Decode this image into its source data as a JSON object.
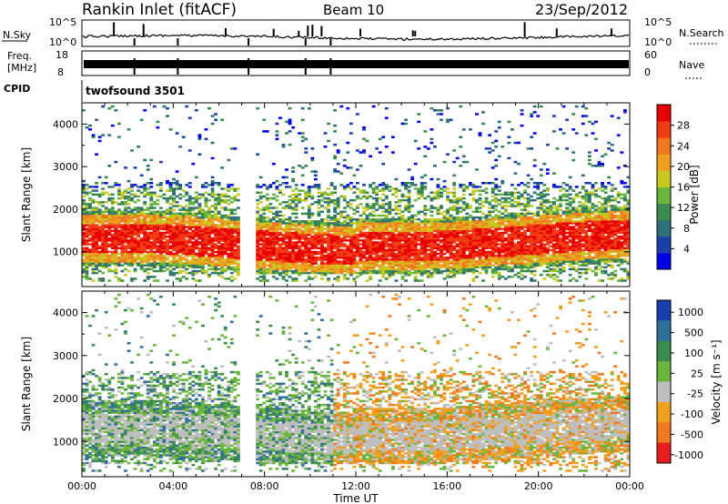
{
  "header": {
    "station": "Rankin Inlet (fitACF)",
    "beam": "Beam 10",
    "date": "23/Sep/2012"
  },
  "strips": {
    "nsky_label": "N.Sky",
    "nsearch_label": "N.Search",
    "nsky_ticks": [
      "10^5",
      "10^0"
    ],
    "nsky_right_ticks": [
      "10^5",
      "10^0"
    ],
    "freq_label_1": "Freq.",
    "freq_label_2": "[MHz]",
    "freq_ticks": [
      "18",
      "8"
    ],
    "nave_label": "Nave",
    "nave_ticks": [
      "60",
      "0"
    ],
    "cpid_label": "CPID",
    "cpid_value": "twofsound 3501"
  },
  "axes": {
    "xlabel": "Time UT",
    "x_ticks": [
      "00:00",
      "04:00",
      "08:00",
      "12:00",
      "16:00",
      "20:00",
      "00:00"
    ],
    "ylabel": "Slant Range [km]",
    "y_ticks": [
      "4000",
      "3000",
      "2000",
      "1000"
    ]
  },
  "colorbars": {
    "power_label": "Power [dB]",
    "power_ticks": [
      "28",
      "24",
      "20",
      "16",
      "12",
      "8",
      "4"
    ],
    "velocity_label": "Velocity [m s⁻¹]",
    "velocity_ticks": [
      "1000",
      "500",
      "100",
      "25",
      "-25",
      "-100",
      "-500",
      "-1000"
    ]
  },
  "chart_data": [
    {
      "type": "heatmap",
      "title": "Power",
      "xlabel": "Time UT",
      "ylabel": "Slant Range [km]",
      "xlim": [
        "00:00",
        "24:00"
      ],
      "ylim": [
        180,
        4500
      ],
      "colorbar": {
        "label": "Power [dB]",
        "range": [
          0,
          32
        ],
        "ticks": [
          4,
          8,
          12,
          16,
          20,
          24,
          28
        ]
      },
      "colors": [
        "#0000e6",
        "#1c3fa8",
        "#2f6f7a",
        "#3b8a4e",
        "#6ab53c",
        "#c8c81e",
        "#f0a020",
        "#f07820",
        "#f03c14",
        "#e60000"
      ],
      "features": [
        {
          "region": "main band",
          "x": [
            "00:00",
            "24:00"
          ],
          "range_km": [
            600,
            1800
          ],
          "dominant_db": 28
        },
        {
          "region": "outer echoes",
          "x": [
            "00:00",
            "24:00"
          ],
          "range_km": [
            1800,
            2500
          ],
          "dominant_db": 14
        },
        {
          "region": "scattered far echoes",
          "x": [
            "01:00",
            "22:00"
          ],
          "range_km": [
            2500,
            4300
          ],
          "dominant_db": 8
        }
      ]
    },
    {
      "type": "heatmap",
      "title": "Velocity",
      "xlabel": "Time UT",
      "ylabel": "Slant Range [km]",
      "xlim": [
        "00:00",
        "24:00"
      ],
      "ylim": [
        180,
        4500
      ],
      "colorbar": {
        "label": "Velocity [m s⁻¹]",
        "range": [
          -1000,
          1000
        ],
        "ticks": [
          1000,
          500,
          100,
          25,
          -25,
          -100,
          -500,
          -1000
        ]
      },
      "colors": [
        "#1c3fb0",
        "#2f6f9a",
        "#3b8a4e",
        "#6ab53c",
        "#bebebe",
        "#f0a020",
        "#f07820",
        "#e61e1e"
      ],
      "features": [
        {
          "region": "ground scatter band",
          "x": [
            "00:00",
            "24:00"
          ],
          "range_km": [
            600,
            1700
          ],
          "dominant_ms": 0
        },
        {
          "region": "toward radar",
          "x": [
            "00:00",
            "11:00"
          ],
          "range_km": [
            500,
            1500
          ],
          "dominant_ms": 200
        },
        {
          "region": "away from radar",
          "x": [
            "12:00",
            "24:00"
          ],
          "range_km": [
            1300,
            2400
          ],
          "dominant_ms": -300
        }
      ]
    }
  ]
}
